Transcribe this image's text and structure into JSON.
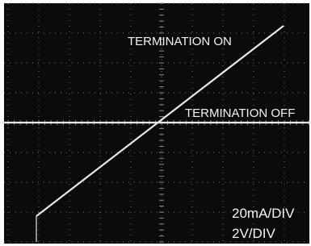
{
  "annotations": {
    "trace_on": "TERMINATION ON",
    "trace_off": "TERMINATION OFF",
    "current_scale": "20mA/DIV",
    "voltage_scale": "2V/DIV"
  }
}
